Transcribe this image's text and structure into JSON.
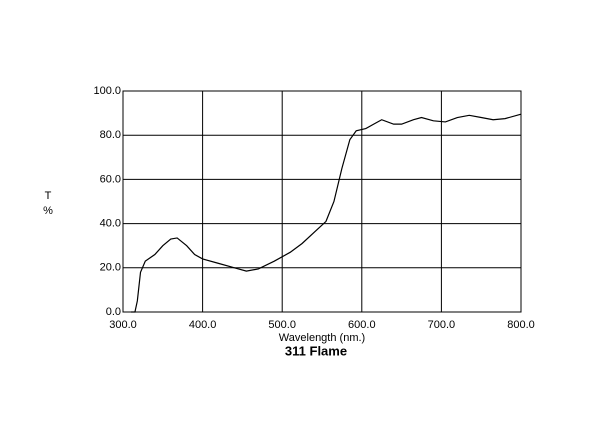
{
  "chart_data": {
    "type": "line",
    "title": "311 Flame",
    "x_label": "Wavelength (nm.)",
    "y_label": [
      "T",
      "%"
    ],
    "x": [
      310,
      315,
      318,
      322,
      328,
      340,
      350,
      360,
      368,
      380,
      390,
      400,
      420,
      440,
      455,
      470,
      490,
      510,
      525,
      540,
      555,
      565,
      575,
      585,
      593,
      605,
      615,
      625,
      640,
      650,
      665,
      675,
      690,
      705,
      720,
      735,
      750,
      765,
      780,
      800
    ],
    "series": [
      {
        "color": "#000000",
        "values": [
          0,
          0,
          5,
          18,
          23,
          26,
          30,
          33,
          33.5,
          30,
          26,
          24,
          22,
          20,
          18.5,
          19.5,
          23,
          27,
          31,
          36,
          41,
          50,
          65,
          78,
          82,
          83,
          85,
          87,
          85,
          85,
          87,
          88,
          86.5,
          86,
          88,
          89,
          88,
          87,
          87.5,
          89.5
        ]
      }
    ],
    "xlim": [
      300,
      800
    ],
    "ylim": [
      0,
      100
    ],
    "xticks": [
      {
        "value": 300,
        "label": "300.0"
      },
      {
        "value": 400,
        "label": "400.0"
      },
      {
        "value": 500,
        "label": "500.0"
      },
      {
        "value": 600,
        "label": "600.0"
      },
      {
        "value": 700,
        "label": "700.0"
      },
      {
        "value": 800,
        "label": "800.0"
      }
    ],
    "yticks": [
      {
        "value": 0,
        "label": "0.0"
      },
      {
        "value": 20,
        "label": "20.0"
      },
      {
        "value": 40,
        "label": "40.0"
      },
      {
        "value": 60,
        "label": "60.0"
      },
      {
        "value": 80,
        "label": "80.0"
      },
      {
        "value": 100,
        "label": "100.0"
      }
    ],
    "grid": true
  }
}
